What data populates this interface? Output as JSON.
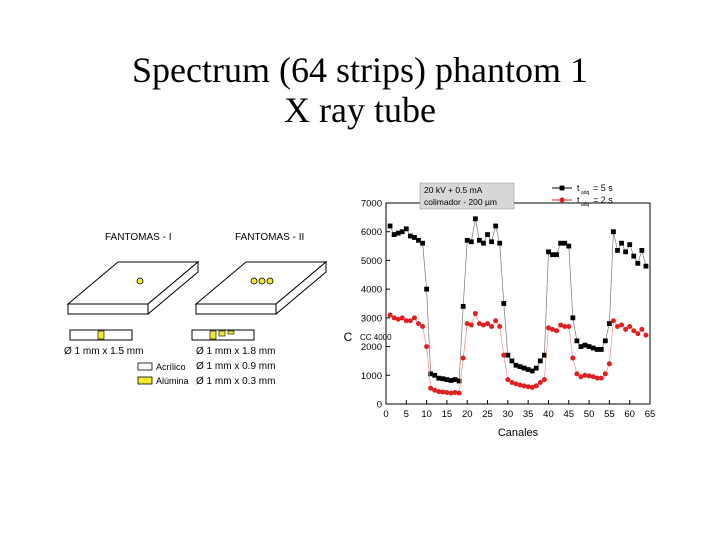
{
  "slide": {
    "title_line1": "Spectrum (64 strips) phantom 1",
    "title_line2": "X ray tube"
  },
  "phantoms": {
    "phantom1_label": "FANTOMAS - I",
    "phantom2_label": "FANTOMAS - II",
    "dim1": "Ø 1 mm x 1.5 mm",
    "dim2": "Ø 1 mm x 1.8 mm",
    "dim3": "Ø 1 mm x 0.9 mm",
    "dim4": "Ø 1 mm x 0.3 mm",
    "legend_acrylic": "Acrílico",
    "legend_alumina": "Alúmina",
    "colors": {
      "acrylic": "#ffffff",
      "alumina": "#f2e830"
    }
  },
  "chart_data": {
    "type": "scatter",
    "xlabel": "Canales",
    "ylabel": "C",
    "ylabel_overlap": "CC 4000",
    "xlim": [
      0,
      65
    ],
    "ylim": [
      0,
      7000
    ],
    "xticks": [
      0,
      5,
      10,
      15,
      20,
      25,
      30,
      35,
      40,
      45,
      50,
      55,
      60,
      65
    ],
    "yticks": [
      0,
      1000,
      2000,
      3000,
      4000,
      5000,
      6000,
      7000
    ],
    "grid": false,
    "legend_placement": "top-right",
    "annotation_line1": "20 kV + 0.5 mA",
    "annotation_line2": "colimador - 200 µm",
    "series": [
      {
        "name": "t_adq = 5 s",
        "legend_t": "t",
        "legend_sub": "adq",
        "legend_val": "= 5 s",
        "color": "#000000",
        "marker": "square",
        "x": [
          1,
          2,
          3,
          4,
          5,
          6,
          7,
          8,
          9,
          10,
          11,
          12,
          13,
          14,
          15,
          16,
          17,
          18,
          19,
          20,
          21,
          22,
          23,
          24,
          25,
          26,
          27,
          28,
          29,
          30,
          31,
          32,
          33,
          34,
          35,
          36,
          37,
          38,
          39,
          40,
          41,
          42,
          43,
          44,
          45,
          46,
          47,
          48,
          49,
          50,
          51,
          52,
          53,
          54,
          55,
          56,
          57,
          58,
          59,
          60,
          61,
          62,
          63,
          64
        ],
        "y": [
          6200,
          5900,
          5950,
          6000,
          6100,
          5850,
          5800,
          5700,
          5600,
          4000,
          1050,
          1000,
          900,
          880,
          850,
          820,
          850,
          800,
          3400,
          5700,
          5650,
          6450,
          5700,
          5600,
          5900,
          5650,
          6200,
          5600,
          3500,
          1700,
          1500,
          1350,
          1300,
          1250,
          1200,
          1150,
          1250,
          1500,
          1700,
          5300,
          5200,
          5200,
          5600,
          5600,
          5500,
          3000,
          2200,
          2000,
          2050,
          2000,
          1950,
          1900,
          1900,
          2200,
          2800,
          6000,
          5350,
          5600,
          5300,
          5550,
          5150,
          4900,
          5350,
          4800
        ]
      },
      {
        "name": "t_adq = 2 s",
        "legend_t": "t",
        "legend_sub": "adq",
        "legend_val": "= 2 s",
        "color": "#e02020",
        "marker": "circle",
        "x": [
          1,
          2,
          3,
          4,
          5,
          6,
          7,
          8,
          9,
          10,
          11,
          12,
          13,
          14,
          15,
          16,
          17,
          18,
          19,
          20,
          21,
          22,
          23,
          24,
          25,
          26,
          27,
          28,
          29,
          30,
          31,
          32,
          33,
          34,
          35,
          36,
          37,
          38,
          39,
          40,
          41,
          42,
          43,
          44,
          45,
          46,
          47,
          48,
          49,
          50,
          51,
          52,
          53,
          54,
          55,
          56,
          57,
          58,
          59,
          60,
          61,
          62,
          63,
          64
        ],
        "y": [
          3100,
          3000,
          2950,
          3000,
          2900,
          2900,
          3000,
          2800,
          2700,
          2000,
          550,
          480,
          430,
          420,
          400,
          380,
          400,
          380,
          1600,
          2800,
          2750,
          3150,
          2800,
          2750,
          2800,
          2700,
          2900,
          2700,
          1700,
          850,
          750,
          700,
          660,
          630,
          600,
          580,
          630,
          750,
          850,
          2650,
          2600,
          2550,
          2750,
          2700,
          2700,
          1600,
          1050,
          950,
          1000,
          980,
          950,
          900,
          900,
          1050,
          1400,
          2900,
          2700,
          2750,
          2600,
          2700,
          2550,
          2450,
          2600,
          2400
        ]
      }
    ]
  }
}
